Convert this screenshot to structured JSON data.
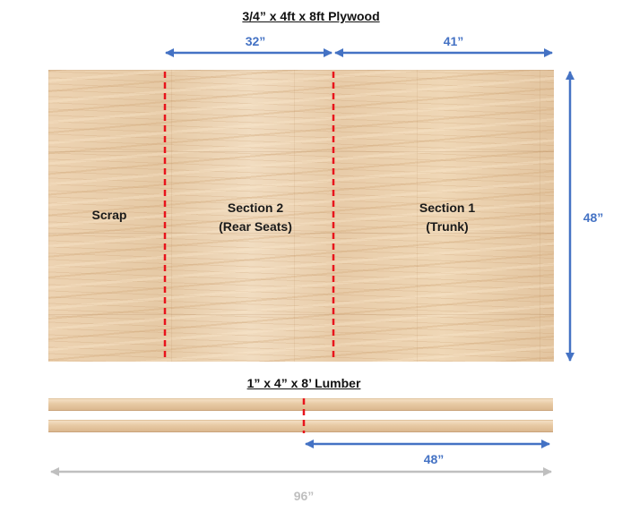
{
  "plywood": {
    "title": "3/4” x 4ft x 8ft Plywood",
    "dims": {
      "left_width": "32”",
      "right_width": "41”",
      "height": "48”"
    },
    "sections": {
      "scrap": "Scrap",
      "section2": [
        "Section 2",
        "(Rear Seats)"
      ],
      "section1": [
        "Section 1",
        "(Trunk)"
      ]
    }
  },
  "lumber": {
    "title": "1” x 4” x 8’ Lumber",
    "dims": {
      "cut_length": "48”",
      "total_length": "96”"
    }
  },
  "colors": {
    "dimension_blue": "#4472c4",
    "dimension_gray": "#bfbfbf",
    "cut_line_red": "#e8141c",
    "wood": "#e9cfae"
  }
}
